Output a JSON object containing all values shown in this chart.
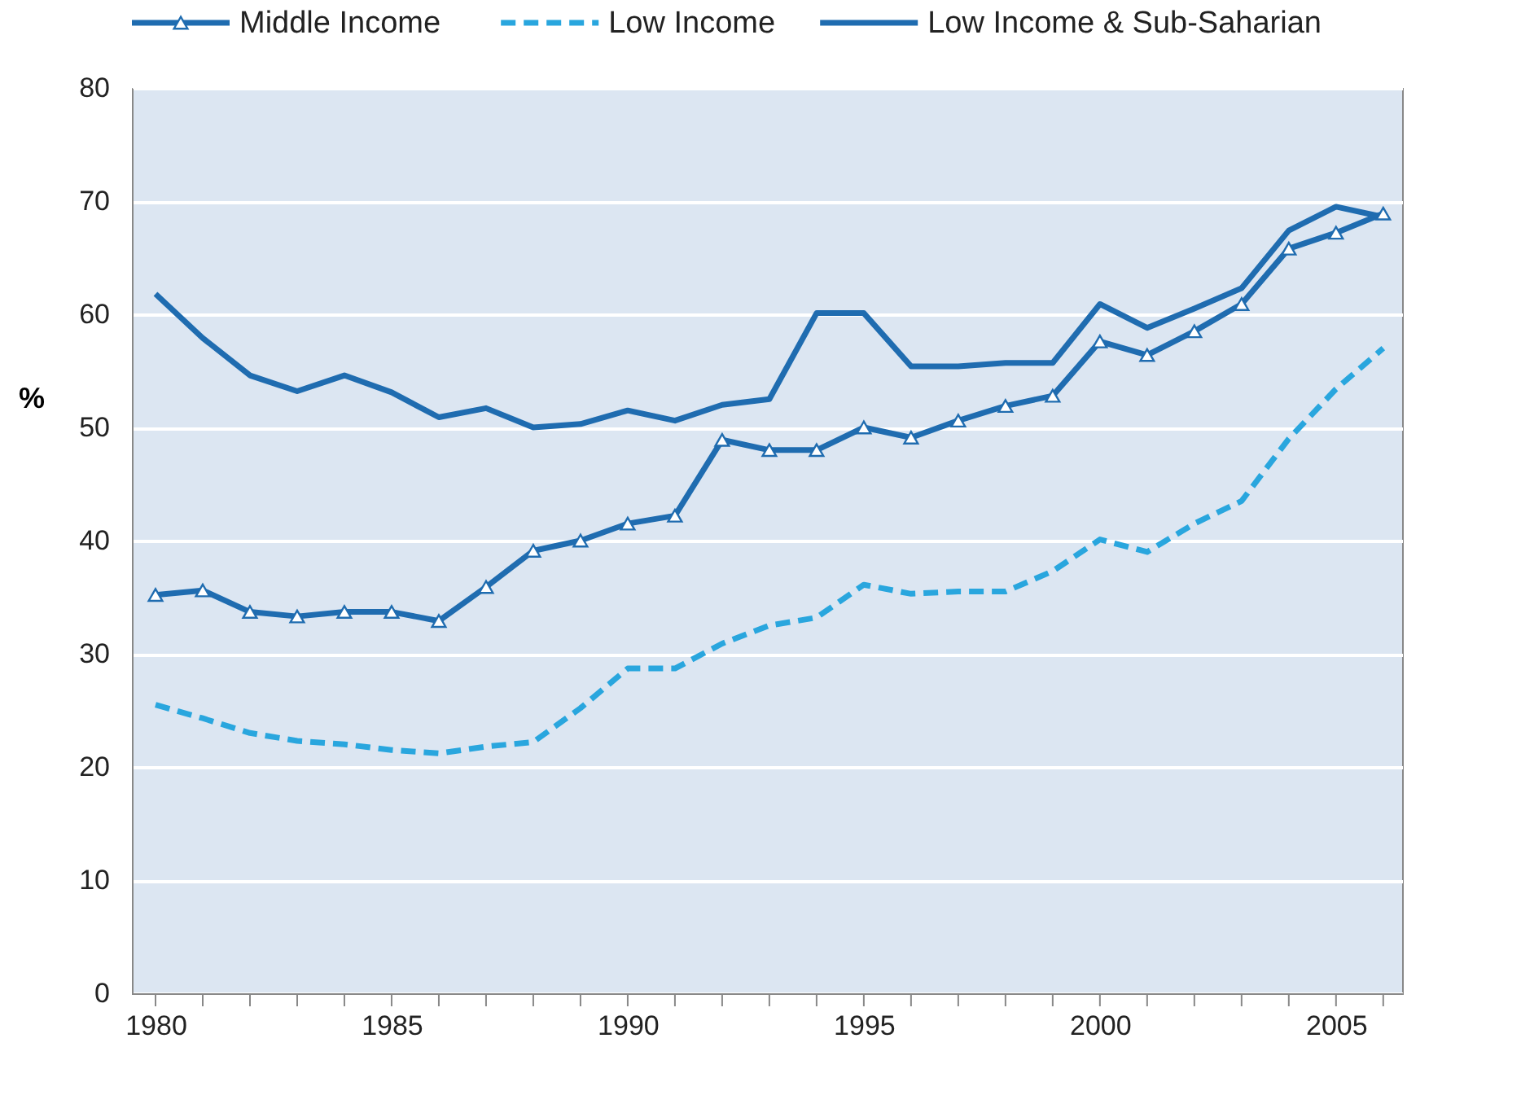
{
  "chart_data": {
    "type": "line",
    "ylabel": "%",
    "x": [
      1980,
      1981,
      1982,
      1983,
      1984,
      1985,
      1986,
      1987,
      1988,
      1989,
      1990,
      1991,
      1992,
      1993,
      1994,
      1995,
      1996,
      1997,
      1998,
      1999,
      2000,
      2001,
      2002,
      2003,
      2004,
      2005,
      2006
    ],
    "series": [
      {
        "name": "Middle Income",
        "color": "#1f6cb0",
        "marker": "triangle",
        "line_style": "solid",
        "values": [
          35.2,
          35.6,
          33.7,
          33.3,
          33.7,
          33.7,
          32.9,
          35.9,
          39.1,
          40.0,
          41.5,
          42.2,
          48.9,
          48.0,
          48.0,
          50.0,
          49.1,
          50.6,
          51.9,
          52.8,
          57.6,
          56.4,
          58.5,
          60.9,
          65.8,
          67.2,
          68.9
        ]
      },
      {
        "name": "Low Income",
        "color": "#29a6de",
        "marker": "none",
        "line_style": "dashed",
        "values": [
          25.5,
          24.3,
          23.0,
          22.3,
          22.0,
          21.5,
          21.2,
          21.8,
          22.2,
          25.2,
          28.7,
          28.7,
          30.9,
          32.5,
          33.2,
          36.1,
          35.3,
          35.5,
          35.5,
          37.3,
          40.1,
          39.0,
          41.5,
          43.5,
          49.0,
          53.4,
          57.0
        ]
      },
      {
        "name": "Low Income & Sub-Saharian",
        "color": "#1f6cb0",
        "marker": "none",
        "line_style": "solid",
        "values": [
          61.8,
          57.9,
          54.6,
          53.2,
          54.6,
          53.1,
          50.9,
          51.7,
          50.0,
          50.3,
          51.5,
          50.6,
          52.0,
          52.5,
          60.1,
          60.1,
          55.4,
          55.4,
          55.7,
          55.7,
          60.9,
          58.8,
          60.5,
          62.3,
          67.4,
          69.5,
          68.6
        ]
      }
    ],
    "xlim": [
      1979.5,
      2006.4
    ],
    "xticks": [
      1980,
      {
        "value": 1981,
        "label": null
      },
      {
        "value": 1982,
        "label": null
      },
      {
        "value": 1983,
        "label": null
      },
      {
        "value": 1984,
        "label": null
      },
      1985,
      {
        "value": 1986,
        "label": null
      },
      {
        "value": 1987,
        "label": null
      },
      {
        "value": 1988,
        "label": null
      },
      {
        "value": 1989,
        "label": null
      },
      1990,
      {
        "value": 1991,
        "label": null
      },
      {
        "value": 1992,
        "label": null
      },
      {
        "value": 1993,
        "label": null
      },
      {
        "value": 1994,
        "label": null
      },
      1995,
      {
        "value": 1996,
        "label": null
      },
      {
        "value": 1997,
        "label": null
      },
      {
        "value": 1998,
        "label": null
      },
      {
        "value": 1999,
        "label": null
      },
      2000,
      {
        "value": 2001,
        "label": null
      },
      {
        "value": 2002,
        "label": null
      },
      {
        "value": 2003,
        "label": null
      },
      {
        "value": 2004,
        "label": null
      },
      2005,
      {
        "value": 2006,
        "label": null
      }
    ],
    "ylim": [
      0,
      80
    ],
    "yticks": [
      0,
      10,
      20,
      30,
      40,
      50,
      60,
      70,
      80
    ],
    "grid": "y",
    "legend": "top"
  }
}
